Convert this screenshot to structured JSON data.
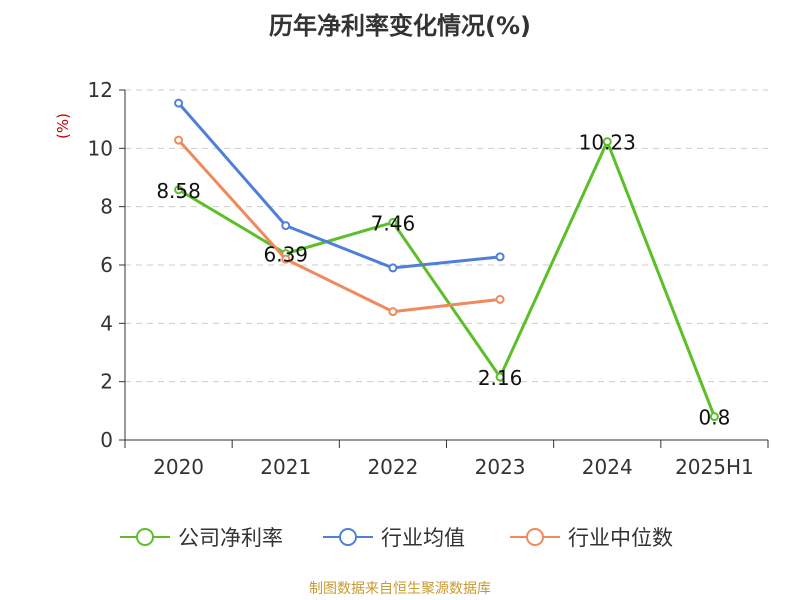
{
  "chart_data": {
    "type": "line",
    "title": "历年净利率变化情况(%)",
    "ylabel": "(%)",
    "categories": [
      "2020",
      "2021",
      "2022",
      "2023",
      "2024",
      "2025H1"
    ],
    "ylim": [
      0,
      12
    ],
    "yticks": [
      0,
      2,
      4,
      6,
      8,
      10,
      12
    ],
    "grid": true,
    "legend_position": "bottom",
    "series": [
      {
        "name": "公司净利率",
        "color": "#5cbf2a",
        "values": [
          8.58,
          6.39,
          7.46,
          2.16,
          10.23,
          0.8
        ],
        "labels": [
          "8.58",
          "6.39",
          "7.46",
          "2.16",
          "10.23",
          "0.8"
        ]
      },
      {
        "name": "行业均值",
        "color": "#4f7fdb",
        "values": [
          11.55,
          7.35,
          5.9,
          6.28,
          null,
          null
        ]
      },
      {
        "name": "行业中位数",
        "color": "#f08a5d",
        "values": [
          10.28,
          6.2,
          4.4,
          4.82,
          null,
          null
        ]
      }
    ]
  },
  "source": "制图数据来自恒生聚源数据库"
}
